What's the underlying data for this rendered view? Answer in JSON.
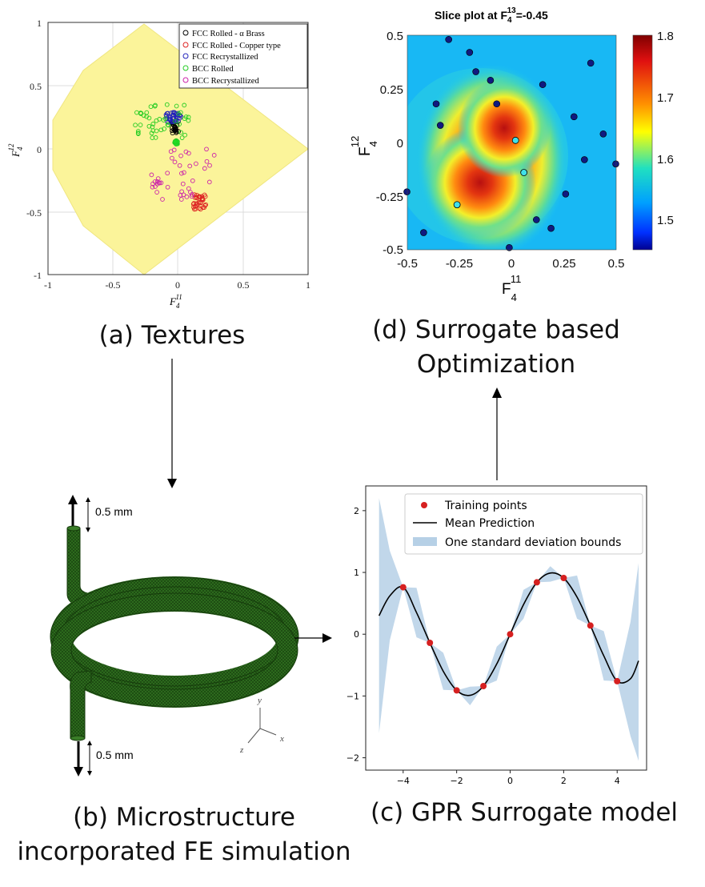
{
  "captions": {
    "a": "(a) Textures",
    "d_line1": "(d) Surrogate based",
    "d_line2": "Optimization",
    "b_line1": "(b) Microstructure",
    "b_line2": "incorporated FE simulation",
    "c": "(c) GPR Surrogate model"
  },
  "panel_a": {
    "xlabel_base": "F",
    "xlabel_sub": "4",
    "xlabel_sup": "11",
    "ylabel_base": "F",
    "ylabel_sub": "4",
    "ylabel_sup": "12",
    "legend": [
      {
        "label": "FCC Rolled - α Brass",
        "color": "#000000"
      },
      {
        "label": "FCC Rolled - Copper type",
        "color": "#dd2222"
      },
      {
        "label": "FCC Recrystallized",
        "color": "#2222bb"
      },
      {
        "label": "BCC Rolled",
        "color": "#22cc22"
      },
      {
        "label": "BCC Recrystallized",
        "color": "#cc22aa"
      }
    ],
    "xticks": [
      "-1",
      "-0.5",
      "0",
      "0.5",
      "1"
    ],
    "yticks": [
      "1",
      "0.5",
      "0",
      "-0.5",
      "-1"
    ],
    "region_color": "#fbf49a"
  },
  "panel_d": {
    "title_main": "Slice plot at F",
    "title_sub": "4",
    "title_sup": "13",
    "title_tail": "=-0.45",
    "xticks": [
      "-0.5",
      "-0.25",
      "0",
      "0.25",
      "0.5"
    ],
    "yticks": [
      "0.5",
      "0.25",
      "0",
      "-0.25",
      "-0.5"
    ],
    "colorbar_ticks": [
      "1.8",
      "1.7",
      "1.6",
      "1.5"
    ],
    "xlabel_base": "F",
    "xlabel_sub": "4",
    "xlabel_sup": "11",
    "ylabel_base": "F",
    "ylabel_sub": "4",
    "ylabel_sup": "12"
  },
  "panel_b": {
    "top_label": "0.5 mm",
    "bottom_label": "0.5 mm",
    "axis_y": "y",
    "axis_x": "x",
    "axis_z": "z",
    "coil_color": "#2a6a1c"
  },
  "chart_data": {
    "type": "line",
    "title": "",
    "xlabel": "",
    "ylabel": "",
    "xlim": [
      -5.4,
      5.1
    ],
    "ylim": [
      -2.2,
      2.4
    ],
    "xticks": [
      "−4",
      "−2",
      "0",
      "2",
      "4"
    ],
    "yticks": [
      "2",
      "1",
      "0",
      "−1",
      "−2"
    ],
    "legend_position": "top-right",
    "series": [
      {
        "name": "Training points",
        "type": "scatter",
        "color": "#d62020",
        "x": [
          -4,
          -3,
          -2,
          -1,
          0,
          1,
          2,
          3,
          4
        ],
        "y": [
          0.76,
          -0.14,
          -0.91,
          -0.84,
          0.0,
          0.84,
          0.91,
          0.14,
          -0.76
        ]
      },
      {
        "name": "Mean Prediction",
        "type": "line",
        "color": "#000000",
        "x": [
          -4.9,
          -4.5,
          -4.0,
          -3.5,
          -3.0,
          -2.5,
          -2.0,
          -1.5,
          -1.0,
          -0.5,
          0.0,
          0.5,
          1.0,
          1.5,
          2.0,
          2.5,
          3.0,
          3.5,
          4.0,
          4.5,
          4.8
        ],
        "y": [
          0.3,
          0.62,
          0.76,
          0.35,
          -0.14,
          -0.6,
          -0.91,
          -0.99,
          -0.84,
          -0.48,
          0.0,
          0.48,
          0.84,
          0.99,
          0.91,
          0.6,
          0.14,
          -0.35,
          -0.76,
          -0.72,
          -0.43
        ]
      },
      {
        "name": "One standard deviation bounds",
        "type": "band",
        "color": "#b6d0e6",
        "x": [
          -4.9,
          -4.5,
          -4.0,
          -3.5,
          -3.0,
          -2.5,
          -2.0,
          -1.5,
          -1.0,
          -0.5,
          0.0,
          0.5,
          1.0,
          1.5,
          2.0,
          2.5,
          3.0,
          3.5,
          4.0,
          4.5,
          4.8
        ],
        "upper": [
          2.2,
          1.35,
          0.76,
          0.75,
          -0.14,
          -0.3,
          -0.91,
          -0.85,
          -0.84,
          -0.2,
          0.0,
          0.72,
          0.84,
          1.1,
          0.91,
          0.95,
          0.14,
          0.05,
          -0.76,
          0.2,
          1.15
        ],
        "lower": [
          -1.6,
          -0.1,
          0.76,
          -0.05,
          -0.14,
          -0.9,
          -0.91,
          -1.15,
          -0.84,
          -0.75,
          0.0,
          0.25,
          0.84,
          0.85,
          0.91,
          0.25,
          0.14,
          -0.75,
          -0.76,
          -1.65,
          -2.05
        ]
      }
    ]
  }
}
